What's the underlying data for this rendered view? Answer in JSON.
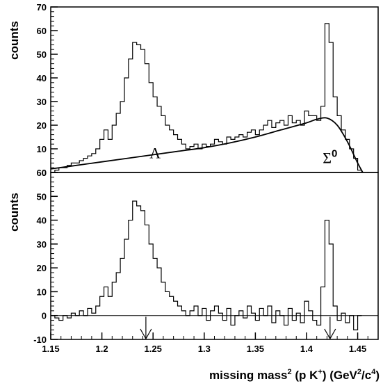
{
  "chart_data": [
    {
      "type": "line",
      "panel": "top",
      "title": "",
      "ylabel": "counts",
      "xlabel": "",
      "xlim": [
        1.15,
        1.47
      ],
      "ylim": [
        0,
        70
      ],
      "yticks": [
        "0",
        "10",
        "20",
        "30",
        "40",
        "50",
        "60",
        "70"
      ],
      "annotations": [
        {
          "text": "Λ",
          "x": 1.252,
          "y": 6
        },
        {
          "text": "Σ",
          "sup": "0",
          "x": 1.423,
          "y": 4
        }
      ],
      "series": [
        {
          "style": "histogram",
          "x": [
            1.156,
            1.16,
            1.164,
            1.168,
            1.172,
            1.176,
            1.18,
            1.184,
            1.188,
            1.192,
            1.196,
            1.2,
            1.204,
            1.208,
            1.212,
            1.216,
            1.22,
            1.224,
            1.228,
            1.232,
            1.236,
            1.24,
            1.244,
            1.248,
            1.252,
            1.256,
            1.26,
            1.264,
            1.268,
            1.272,
            1.276,
            1.28,
            1.284,
            1.288,
            1.292,
            1.296,
            1.3,
            1.304,
            1.308,
            1.312,
            1.316,
            1.32,
            1.324,
            1.328,
            1.332,
            1.336,
            1.34,
            1.344,
            1.348,
            1.352,
            1.356,
            1.36,
            1.364,
            1.368,
            1.372,
            1.376,
            1.38,
            1.384,
            1.388,
            1.392,
            1.396,
            1.4,
            1.404,
            1.408,
            1.412,
            1.416,
            1.42,
            1.424,
            1.428,
            1.432,
            1.436,
            1.44,
            1.444,
            1.448,
            1.452
          ],
          "values": [
            1,
            2,
            2,
            3,
            4,
            4,
            5,
            6,
            7,
            8,
            10,
            14,
            18,
            14,
            20,
            25,
            30,
            40,
            48,
            55,
            54,
            52,
            46,
            38,
            32,
            28,
            24,
            20,
            18,
            16,
            14,
            12,
            10,
            11,
            12,
            10,
            12,
            11,
            12,
            14,
            13,
            12,
            15,
            14,
            15,
            16,
            15,
            17,
            18,
            16,
            18,
            20,
            22,
            19,
            21,
            22,
            20,
            24,
            21,
            22,
            20,
            26,
            24,
            24,
            22,
            28,
            63,
            55,
            32,
            24,
            18,
            14,
            10,
            6,
            1
          ]
        },
        {
          "style": "smooth-curve",
          "x": [
            1.15,
            1.175,
            1.2,
            1.225,
            1.25,
            1.275,
            1.3,
            1.325,
            1.35,
            1.375,
            1.4,
            1.41,
            1.42,
            1.43,
            1.44,
            1.45,
            1.455
          ],
          "values": [
            1.5,
            3,
            4.5,
            6,
            7.5,
            9,
            10.5,
            12.5,
            15,
            18,
            21,
            22.5,
            23,
            20,
            13,
            4,
            0
          ]
        }
      ]
    },
    {
      "type": "line",
      "panel": "bottom",
      "title": "",
      "ylabel": "counts",
      "xlabel": "missing mass",
      "xlabel_sup": "2",
      "xlabel_rest": " (p K",
      "xlabel_sup2": "+",
      "xlabel_rest2": ") (GeV",
      "xlabel_sup3": "2",
      "xlabel_rest3": "/c",
      "xlabel_sup4": "4",
      "xlabel_rest4": ")",
      "xlim": [
        1.15,
        1.47
      ],
      "ylim": [
        -10,
        60
      ],
      "xticks": [
        "1.15",
        "1.2",
        "1.25",
        "1.3",
        "1.35",
        "1.4",
        "1.45"
      ],
      "yticks": [
        "-10",
        "0",
        "10",
        "20",
        "30",
        "40",
        "50",
        "60"
      ],
      "arrows_x": [
        1.243,
        1.423
      ],
      "series": [
        {
          "style": "histogram",
          "x": [
            1.156,
            1.16,
            1.164,
            1.168,
            1.172,
            1.176,
            1.18,
            1.184,
            1.188,
            1.192,
            1.196,
            1.2,
            1.204,
            1.208,
            1.212,
            1.216,
            1.22,
            1.224,
            1.228,
            1.232,
            1.236,
            1.24,
            1.244,
            1.248,
            1.252,
            1.256,
            1.26,
            1.264,
            1.268,
            1.272,
            1.276,
            1.28,
            1.284,
            1.288,
            1.292,
            1.296,
            1.3,
            1.304,
            1.308,
            1.312,
            1.316,
            1.32,
            1.324,
            1.328,
            1.332,
            1.336,
            1.34,
            1.344,
            1.348,
            1.352,
            1.356,
            1.36,
            1.364,
            1.368,
            1.372,
            1.376,
            1.38,
            1.384,
            1.388,
            1.392,
            1.396,
            1.4,
            1.404,
            1.408,
            1.412,
            1.416,
            1.42,
            1.424,
            1.428,
            1.432,
            1.436,
            1.44,
            1.444,
            1.448,
            1.452
          ],
          "values": [
            -1,
            -2,
            0,
            -1,
            1,
            0,
            2,
            0,
            3,
            1,
            4,
            8,
            12,
            8,
            14,
            18,
            24,
            32,
            40,
            48,
            46,
            44,
            38,
            30,
            24,
            20,
            14,
            10,
            8,
            6,
            4,
            2,
            0,
            2,
            4,
            0,
            3,
            -2,
            2,
            4,
            1,
            -2,
            3,
            -4,
            0,
            2,
            -1,
            4,
            1,
            -2,
            3,
            0,
            4,
            -3,
            2,
            0,
            -4,
            3,
            -2,
            1,
            -3,
            6,
            2,
            -2,
            -4,
            12,
            40,
            30,
            4,
            -2,
            1,
            -3,
            0,
            -6,
            0
          ]
        }
      ]
    }
  ]
}
